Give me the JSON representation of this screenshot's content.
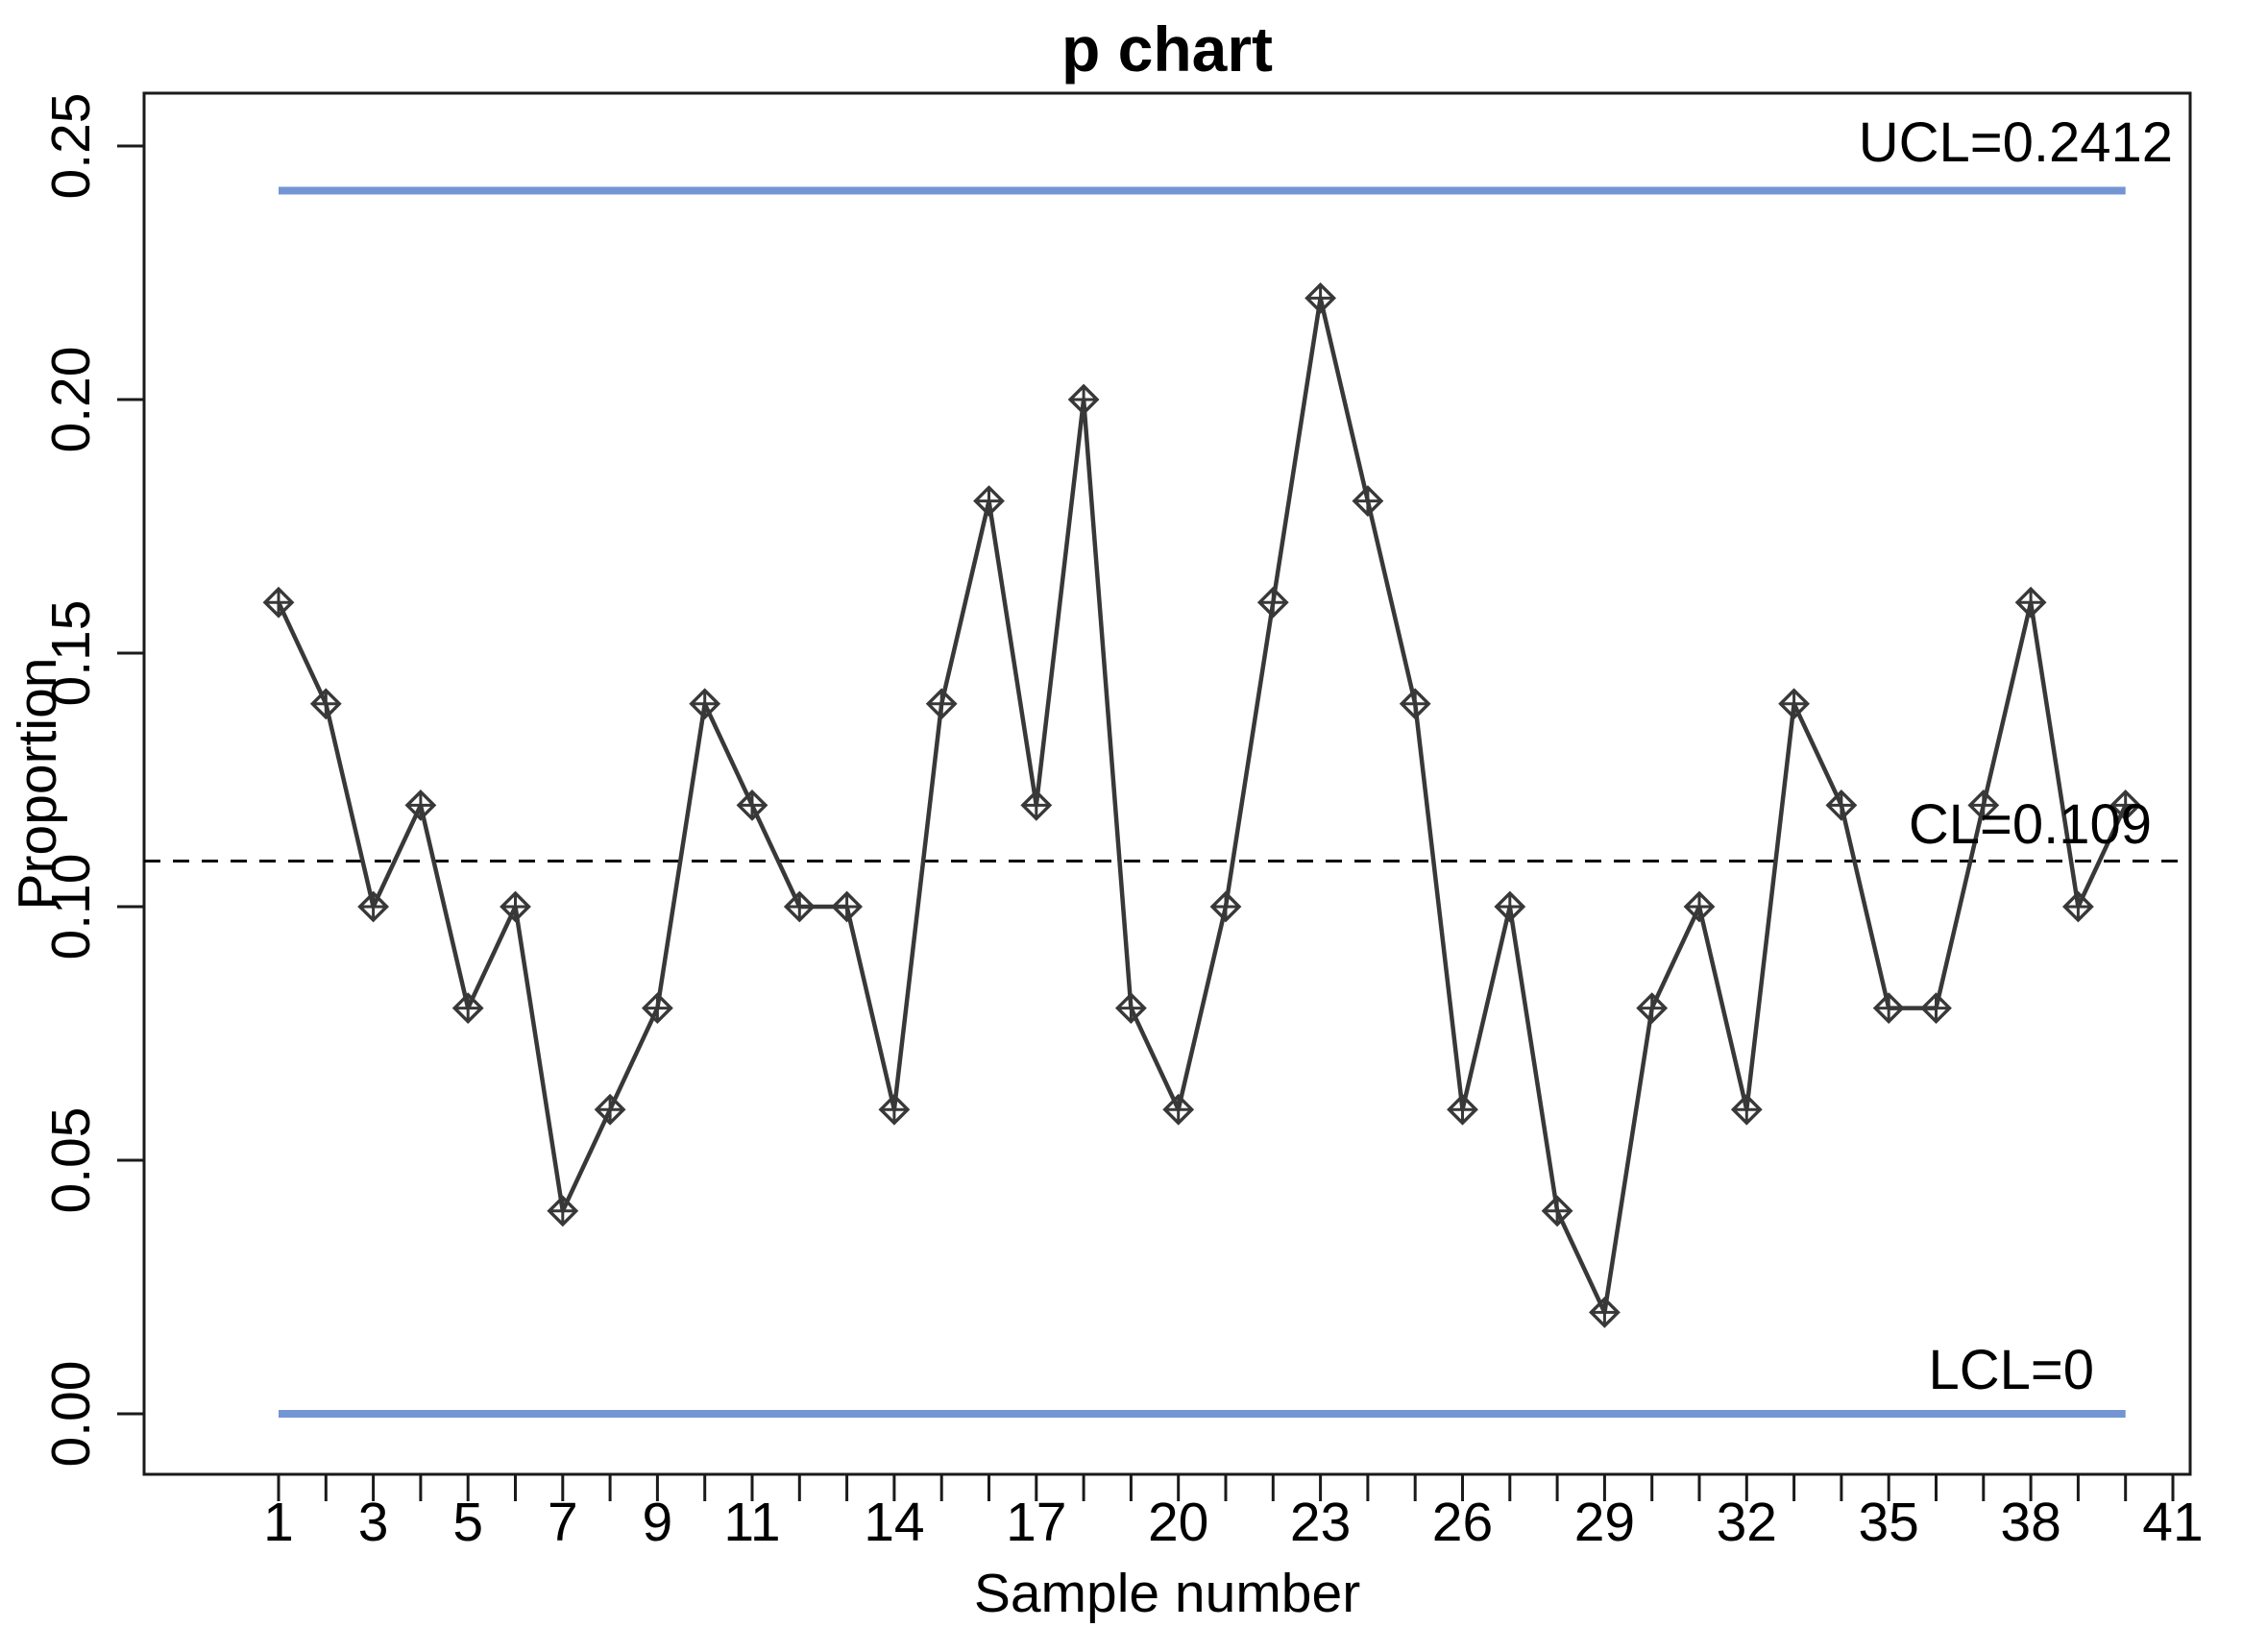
{
  "chart_data": {
    "type": "line",
    "title": "p chart",
    "xlabel": "Sample number",
    "ylabel": "Proportion",
    "series": [
      {
        "name": "proportion",
        "x": [
          1,
          2,
          3,
          4,
          5,
          6,
          7,
          8,
          9,
          10,
          11,
          12,
          13,
          14,
          15,
          16,
          17,
          18,
          19,
          20,
          21,
          22,
          23,
          24,
          25,
          26,
          27,
          28,
          29,
          30,
          31,
          32,
          33,
          34,
          35,
          36,
          37,
          38,
          39,
          40
        ],
        "values": [
          0.16,
          0.14,
          0.1,
          0.12,
          0.08,
          0.1,
          0.04,
          0.06,
          0.08,
          0.14,
          0.12,
          0.1,
          0.1,
          0.06,
          0.14,
          0.18,
          0.12,
          0.2,
          0.08,
          0.06,
          0.1,
          0.16,
          0.22,
          0.18,
          0.14,
          0.06,
          0.1,
          0.04,
          0.02,
          0.08,
          0.1,
          0.06,
          0.14,
          0.12,
          0.08,
          0.08,
          0.12,
          0.16,
          0.1,
          0.12
        ]
      }
    ],
    "control_lines": {
      "ucl": {
        "label": "UCL=0.2412",
        "value": 0.2412
      },
      "cl": {
        "label": "CL=0.109",
        "value": 0.109
      },
      "lcl": {
        "label": "LCL=0",
        "value": 0
      }
    },
    "x_axis": {
      "tick_positions": [
        1,
        2,
        3,
        4,
        5,
        6,
        7,
        8,
        9,
        10,
        11,
        12,
        13,
        14,
        15,
        16,
        17,
        18,
        19,
        20,
        21,
        22,
        23,
        24,
        25,
        26,
        27,
        28,
        29,
        30,
        31,
        32,
        33,
        34,
        35,
        36,
        37,
        38,
        39,
        40,
        41
      ],
      "labeled_ticks": [
        1,
        3,
        5,
        7,
        9,
        11,
        14,
        17,
        20,
        23,
        26,
        29,
        32,
        35,
        38,
        41
      ],
      "range": [
        1,
        41
      ]
    },
    "y_axis": {
      "tick_labels": [
        "0.00",
        "0.05",
        "0.10",
        "0.15",
        "0.20",
        "0.25"
      ],
      "tick_values": [
        0.0,
        0.05,
        0.1,
        0.15,
        0.2,
        0.25
      ],
      "ylim": [
        0,
        0.25
      ],
      "grid": false
    },
    "legend": {
      "shown": false
    },
    "colors": {
      "limit_line": "#7495d4",
      "series_line": "#383838",
      "center_line": "#000000",
      "box": "#1a1a1a",
      "background": "#ffffff"
    },
    "marker": "diamond-plus"
  }
}
